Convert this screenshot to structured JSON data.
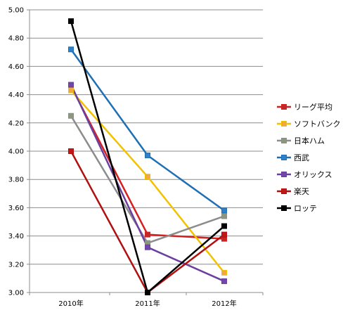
{
  "chart_data": {
    "type": "line",
    "title": "",
    "xlabel": "",
    "ylabel": "",
    "categories": [
      "2010年",
      "2011年",
      "2012年"
    ],
    "ylim": [
      3.0,
      5.0
    ],
    "yticks": [
      "3.00",
      "3.20",
      "3.40",
      "3.60",
      "3.80",
      "4.00",
      "4.20",
      "4.40",
      "4.60",
      "4.80",
      "5.00"
    ],
    "grid": true,
    "legend_position": "right",
    "series": [
      {
        "name": "リーグ平均",
        "color": "#d62020",
        "marker_fill": "#c0282a",
        "values": [
          4.46,
          3.41,
          3.38
        ]
      },
      {
        "name": "ソフトバンク",
        "color": "#f2c200",
        "marker_fill": "#f0a840",
        "values": [
          4.43,
          3.82,
          3.14
        ]
      },
      {
        "name": "日本ハム",
        "color": "#8c8c8c",
        "marker_fill": "#8a9a78",
        "values": [
          4.25,
          3.35,
          3.54
        ]
      },
      {
        "name": "西武",
        "color": "#1f6fb4",
        "marker_fill": "#2e80c8",
        "values": [
          4.72,
          3.97,
          3.58
        ]
      },
      {
        "name": "オリックス",
        "color": "#6a3fa0",
        "marker_fill": "#7048a8",
        "values": [
          4.47,
          3.32,
          3.08
        ]
      },
      {
        "name": "楽天",
        "color": "#b01010",
        "marker_fill": "#c01818",
        "values": [
          4.0,
          3.0,
          3.41
        ]
      },
      {
        "name": "ロッテ",
        "color": "#000000",
        "marker_fill": "#000000",
        "values": [
          4.92,
          3.0,
          3.47
        ]
      }
    ]
  }
}
